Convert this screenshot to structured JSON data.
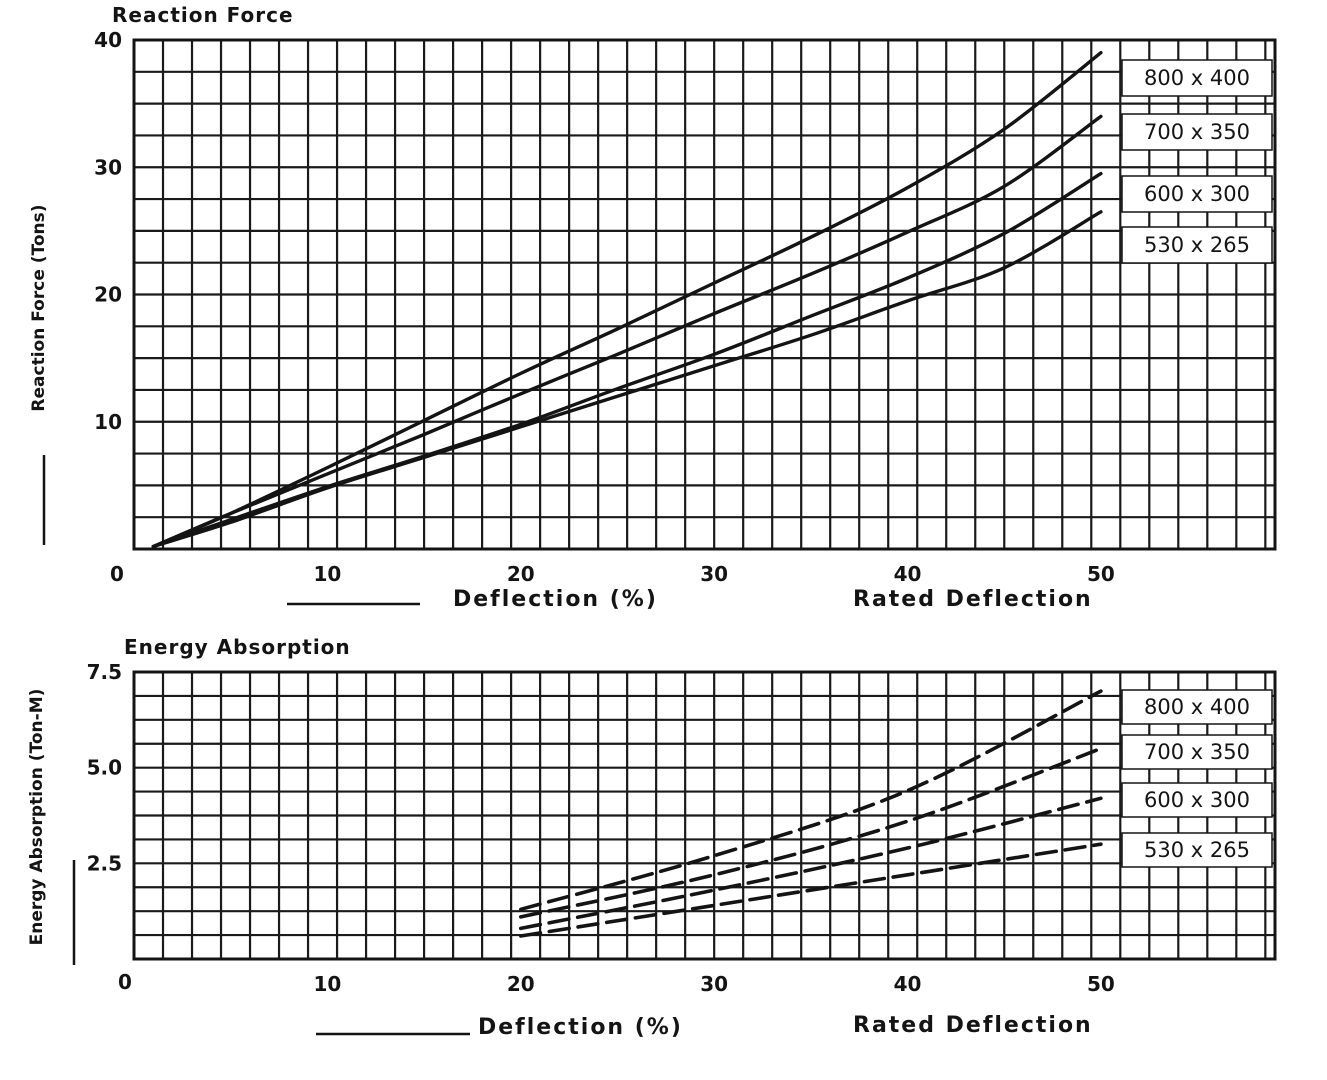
{
  "chart_data": [
    {
      "type": "line",
      "title": "Reaction Force",
      "ylabel": "Reaction Force (Tons)",
      "xlabel": "Deflection (%)",
      "xlabel_right": "Rated Deflection",
      "x_ticks": [
        "0",
        "10",
        "20",
        "30",
        "40",
        "50"
      ],
      "y_ticks": [
        "10",
        "20",
        "30",
        "40"
      ],
      "xlim": [
        0,
        59
      ],
      "ylim": [
        0,
        40
      ],
      "grid": true,
      "legend_position": "right",
      "series": [
        {
          "name": "800 x 400",
          "x": [
            1,
            5,
            10,
            15,
            20,
            25,
            30,
            35,
            40,
            45,
            50
          ],
          "y": [
            0.2,
            2.8,
            6.4,
            10.1,
            13.8,
            17.3,
            20.9,
            24.5,
            28.4,
            33.0,
            39.0
          ]
        },
        {
          "name": "700 x 350",
          "x": [
            1,
            5,
            10,
            15,
            20,
            25,
            30,
            35,
            40,
            45,
            50
          ],
          "y": [
            0.2,
            2.8,
            5.9,
            9.0,
            12.2,
            15.3,
            18.5,
            21.6,
            24.9,
            28.5,
            34.0
          ]
        },
        {
          "name": "600 x 300",
          "x": [
            1,
            5,
            10,
            15,
            20,
            25,
            30,
            35,
            40,
            45,
            50
          ],
          "y": [
            0.2,
            2.3,
            4.9,
            7.3,
            9.8,
            12.6,
            15.3,
            18.3,
            21.3,
            24.8,
            29.5
          ]
        },
        {
          "name": "530 x 265",
          "x": [
            1,
            5,
            10,
            15,
            20,
            25,
            30,
            35,
            40,
            45,
            50
          ],
          "y": [
            0.2,
            2.1,
            4.8,
            7.2,
            9.6,
            12.0,
            14.4,
            16.8,
            19.5,
            22.1,
            26.5
          ]
        }
      ]
    },
    {
      "type": "line",
      "title": "Energy Absorption",
      "ylabel": "Energy Absorption (Ton-M)",
      "xlabel": "Deflection (%)",
      "xlabel_right": "Rated Deflection",
      "x_ticks": [
        "0",
        "10",
        "20",
        "30",
        "40",
        "50"
      ],
      "y_ticks": [
        "2.5",
        "5.0",
        "7.5"
      ],
      "xlim": [
        0,
        59
      ],
      "ylim": [
        0,
        7.5
      ],
      "grid": true,
      "legend_position": "right",
      "series": [
        {
          "name": "800 x 400",
          "x": [
            20,
            30,
            40,
            50
          ],
          "y": [
            1.3,
            2.7,
            4.4,
            7.0
          ]
        },
        {
          "name": "700 x 350",
          "x": [
            20,
            30,
            40,
            50
          ],
          "y": [
            1.1,
            2.2,
            3.6,
            5.5
          ]
        },
        {
          "name": "600 x 300",
          "x": [
            20,
            30,
            40,
            50
          ],
          "y": [
            0.8,
            1.8,
            2.9,
            4.2
          ]
        },
        {
          "name": "530 x 265",
          "x": [
            20,
            30,
            40,
            50
          ],
          "y": [
            0.6,
            1.4,
            2.2,
            3.0
          ]
        }
      ]
    }
  ]
}
